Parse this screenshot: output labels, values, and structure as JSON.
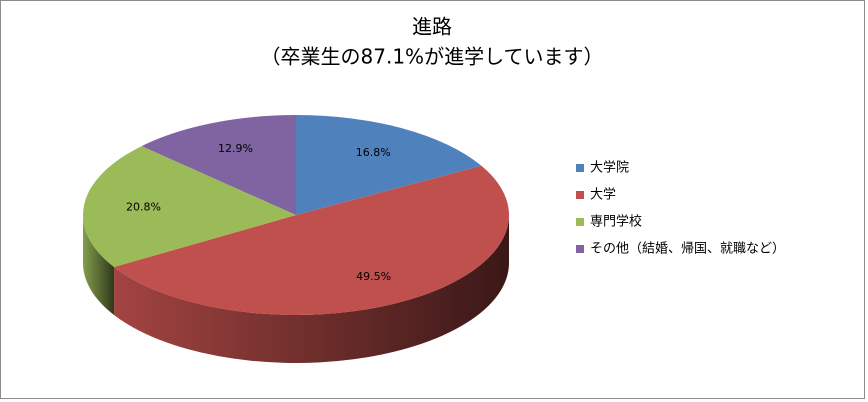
{
  "chart_data": {
    "type": "pie3d",
    "title": "進路",
    "subtitle": "（卒業生の87.1%が進学しています）",
    "categories": [
      "大学院",
      "大学",
      "専門学校",
      "その他（結婚、帰国、就職など）"
    ],
    "values": [
      16.8,
      49.5,
      20.8,
      12.9
    ],
    "value_labels": [
      "16.8%",
      "49.5%",
      "20.8%",
      "12.9%"
    ],
    "colors": [
      "#4f81bd",
      "#c0504d",
      "#9bbb59",
      "#8064a2"
    ],
    "legend": "right"
  }
}
